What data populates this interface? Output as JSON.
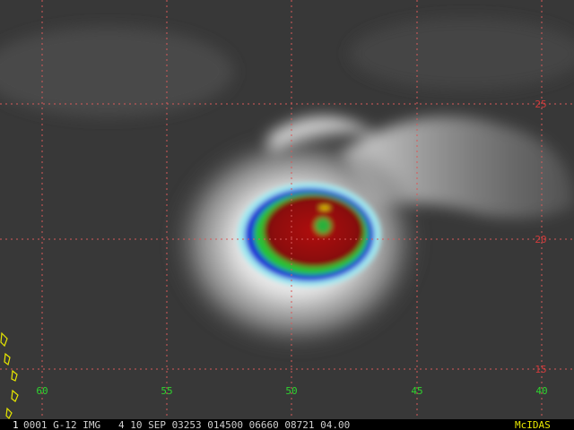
{
  "map": {
    "longitude_labels": [
      "60",
      "55",
      "50",
      "45",
      "40"
    ],
    "latitude_labels": [
      "25",
      "20",
      "15"
    ],
    "footer": {
      "frame": "1",
      "info": "0001 G-12 IMG   4 10 SEP 03253 014500 06660 08721 04.00",
      "brand": "McIDAS"
    }
  }
}
